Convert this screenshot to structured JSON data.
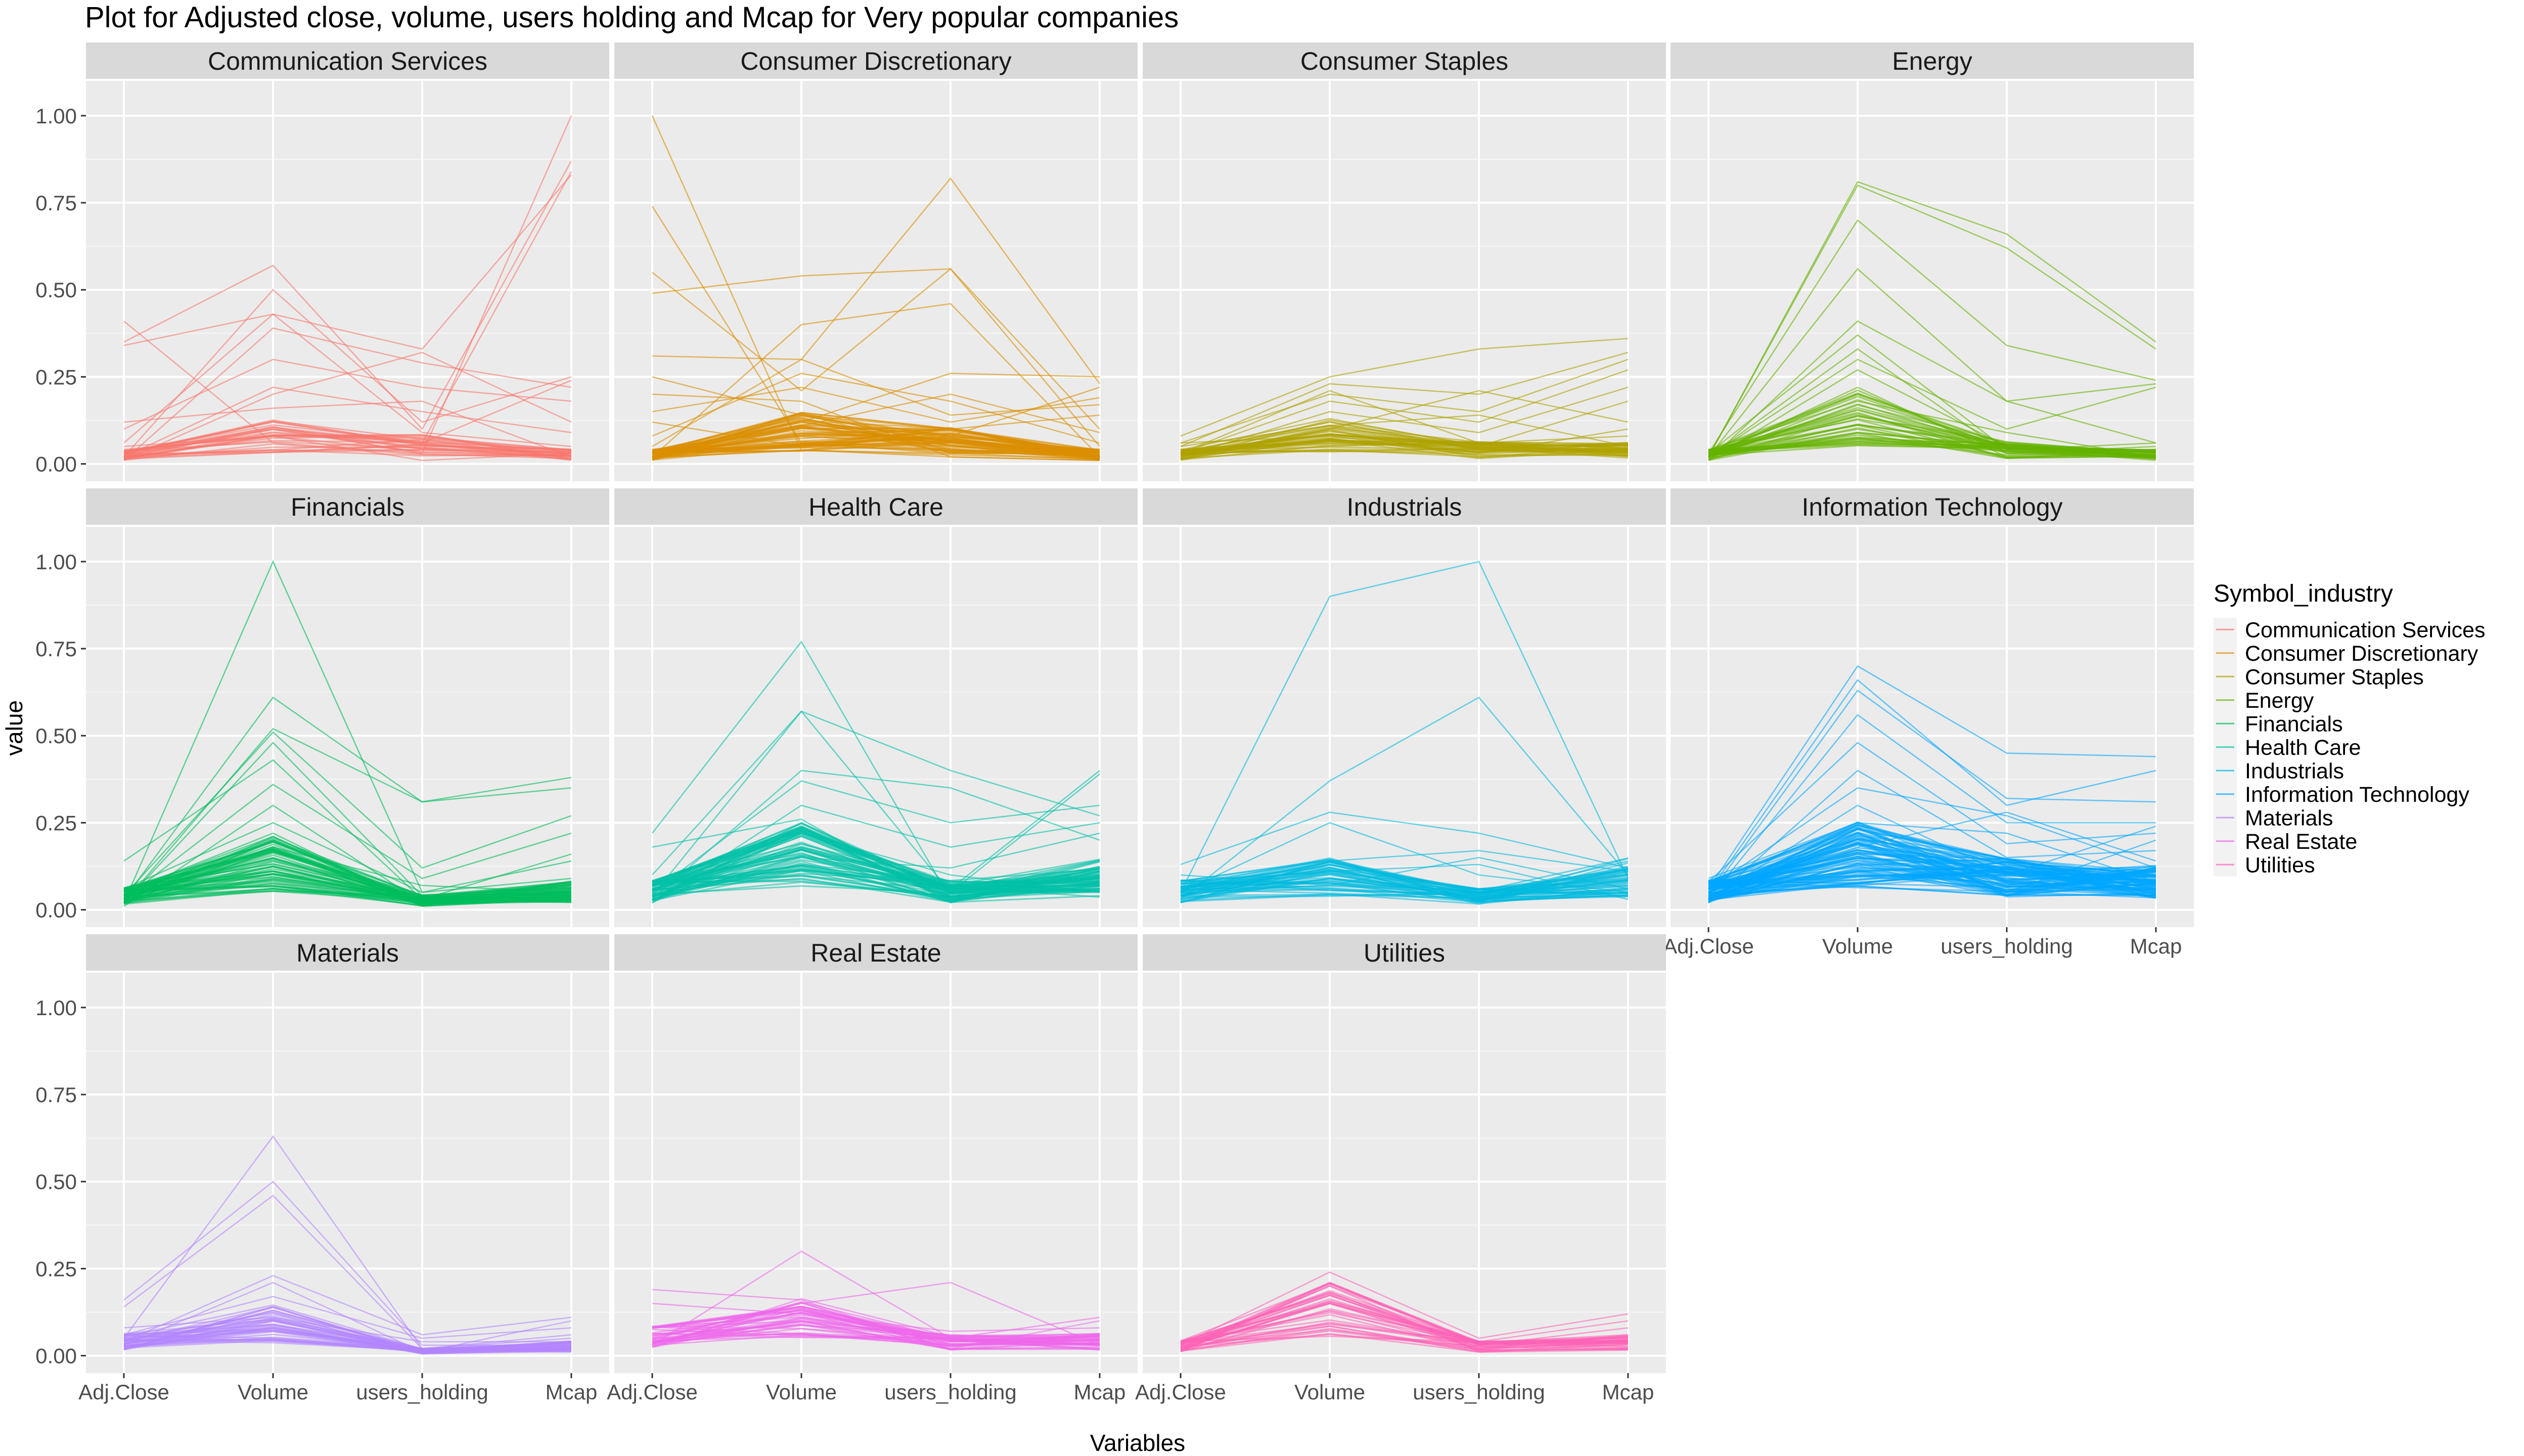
{
  "chart_data": {
    "type": "line",
    "subtype": "parallel-coordinates-faceted",
    "title": "Plot for Adjusted close, volume, users holding and Mcap for Very popular companies",
    "xlabel": "Variables",
    "ylabel": "value",
    "categories": [
      "Adj.Close",
      "Volume",
      "users_holding",
      "Mcap"
    ],
    "yticks": [
      "0.00",
      "0.25",
      "0.50",
      "0.75",
      "1.00"
    ],
    "ylim": [
      -0.05,
      1.1
    ],
    "grid": true,
    "legend": {
      "title": "Symbol_industry",
      "placement": "right",
      "entries": [
        {
          "name": "Communication Services",
          "color": "#F8766D"
        },
        {
          "name": "Consumer Discretionary",
          "color": "#DB8E00"
        },
        {
          "name": "Consumer Staples",
          "color": "#AEA200"
        },
        {
          "name": "Energy",
          "color": "#64B200"
        },
        {
          "name": "Financials",
          "color": "#00BD5C"
        },
        {
          "name": "Health Care",
          "color": "#00C1A7"
        },
        {
          "name": "Industrials",
          "color": "#00BADE"
        },
        {
          "name": "Information Technology",
          "color": "#00A6FF"
        },
        {
          "name": "Materials",
          "color": "#B385FF"
        },
        {
          "name": "Real Estate",
          "color": "#EF67EB"
        },
        {
          "name": "Utilities",
          "color": "#FF63B6"
        }
      ]
    },
    "facets": [
      {
        "name": "Communication Services",
        "color": "#F8766D",
        "dense": [
          0.02,
          0.06,
          0.04,
          0.02
        ],
        "dense_count": 28,
        "series": [
          [
            0.41,
            0.06,
            0.03,
            1.0
          ],
          [
            0.35,
            0.57,
            0.1,
            0.87
          ],
          [
            0.34,
            0.43,
            0.33,
            0.83
          ],
          [
            0.02,
            0.5,
            0.12,
            0.25
          ],
          [
            0.01,
            0.39,
            0.29,
            0.22
          ],
          [
            0.03,
            0.12,
            0.06,
            0.84
          ],
          [
            0.1,
            0.3,
            0.22,
            0.18
          ],
          [
            0.02,
            0.22,
            0.15,
            0.09
          ],
          [
            0.05,
            0.08,
            0.01,
            0.03
          ],
          [
            0.01,
            0.2,
            0.32,
            0.12
          ],
          [
            0.06,
            0.43,
            0.09,
            0.05
          ],
          [
            0.02,
            0.1,
            0.06,
            0.24
          ],
          [
            0.12,
            0.16,
            0.18,
            0.02
          ]
        ]
      },
      {
        "name": "Consumer Discretionary",
        "color": "#DB8E00",
        "dense": [
          0.02,
          0.07,
          0.05,
          0.02
        ],
        "dense_count": 60,
        "series": [
          [
            1.0,
            0.04,
            0.02,
            0.01
          ],
          [
            0.74,
            0.06,
            0.03,
            0.03
          ],
          [
            0.55,
            0.21,
            0.56,
            0.05
          ],
          [
            0.49,
            0.54,
            0.56,
            0.1
          ],
          [
            0.31,
            0.3,
            0.82,
            0.23
          ],
          [
            0.02,
            0.4,
            0.46,
            0.02
          ],
          [
            0.02,
            0.12,
            0.26,
            0.25
          ],
          [
            0.25,
            0.14,
            0.1,
            0.14
          ],
          [
            0.15,
            0.22,
            0.12,
            0.19
          ],
          [
            0.08,
            0.26,
            0.18,
            0.06
          ],
          [
            0.12,
            0.05,
            0.08,
            0.22
          ],
          [
            0.2,
            0.18,
            0.02,
            0.01
          ],
          [
            0.05,
            0.3,
            0.14,
            0.17
          ],
          [
            0.03,
            0.11,
            0.2,
            0.09
          ]
        ]
      },
      {
        "name": "Consumer Staples",
        "color": "#AEA200",
        "dense": [
          0.02,
          0.06,
          0.03,
          0.03
        ],
        "dense_count": 40,
        "series": [
          [
            0.08,
            0.25,
            0.33,
            0.36
          ],
          [
            0.05,
            0.23,
            0.2,
            0.32
          ],
          [
            0.06,
            0.2,
            0.15,
            0.3
          ],
          [
            0.03,
            0.18,
            0.12,
            0.27
          ],
          [
            0.02,
            0.15,
            0.09,
            0.22
          ],
          [
            0.04,
            0.13,
            0.05,
            0.18
          ],
          [
            0.02,
            0.1,
            0.21,
            0.12
          ],
          [
            0.06,
            0.08,
            0.03,
            0.1
          ],
          [
            0.03,
            0.21,
            0.06,
            0.08
          ],
          [
            0.05,
            0.11,
            0.14,
            0.05
          ]
        ]
      },
      {
        "name": "Energy",
        "color": "#64B200",
        "dense": [
          0.02,
          0.1,
          0.03,
          0.02
        ],
        "dense_count": 40,
        "series": [
          [
            0.02,
            0.81,
            0.66,
            0.35
          ],
          [
            0.02,
            0.8,
            0.62,
            0.33
          ],
          [
            0.03,
            0.7,
            0.34,
            0.24
          ],
          [
            0.02,
            0.56,
            0.18,
            0.23
          ],
          [
            0.01,
            0.41,
            0.18,
            0.06
          ],
          [
            0.03,
            0.37,
            0.04,
            0.06
          ],
          [
            0.02,
            0.3,
            0.1,
            0.22
          ],
          [
            0.01,
            0.27,
            0.05,
            0.04
          ],
          [
            0.02,
            0.22,
            0.02,
            0.03
          ],
          [
            0.04,
            0.18,
            0.09,
            0.02
          ],
          [
            0.02,
            0.33,
            0.03,
            0.05
          ]
        ]
      },
      {
        "name": "Financials",
        "color": "#00BD5C",
        "dense": [
          0.03,
          0.1,
          0.02,
          0.04
        ],
        "dense_count": 70,
        "series": [
          [
            0.02,
            1.0,
            0.05,
            0.09
          ],
          [
            0.03,
            0.61,
            0.31,
            0.38
          ],
          [
            0.02,
            0.52,
            0.31,
            0.35
          ],
          [
            0.04,
            0.51,
            0.12,
            0.27
          ],
          [
            0.14,
            0.43,
            0.03,
            0.16
          ],
          [
            0.03,
            0.36,
            0.09,
            0.22
          ],
          [
            0.01,
            0.3,
            0.02,
            0.05
          ],
          [
            0.06,
            0.25,
            0.05,
            0.14
          ],
          [
            0.02,
            0.48,
            0.04,
            0.08
          ],
          [
            0.05,
            0.22,
            0.01,
            0.03
          ],
          [
            0.02,
            0.18,
            0.07,
            0.05
          ]
        ]
      },
      {
        "name": "Health Care",
        "color": "#00C1A7",
        "dense": [
          0.04,
          0.12,
          0.04,
          0.07
        ],
        "dense_count": 70,
        "series": [
          [
            0.22,
            0.77,
            0.03,
            0.08
          ],
          [
            0.04,
            0.57,
            0.4,
            0.27
          ],
          [
            0.1,
            0.57,
            0.05,
            0.39
          ],
          [
            0.03,
            0.4,
            0.35,
            0.2
          ],
          [
            0.05,
            0.37,
            0.25,
            0.3
          ],
          [
            0.02,
            0.3,
            0.18,
            0.25
          ],
          [
            0.18,
            0.26,
            0.02,
            0.12
          ],
          [
            0.02,
            0.22,
            0.1,
            0.05
          ],
          [
            0.08,
            0.19,
            0.06,
            0.4
          ],
          [
            0.03,
            0.15,
            0.12,
            0.22
          ]
        ]
      },
      {
        "name": "Industrials",
        "color": "#00BADE",
        "dense": [
          0.04,
          0.07,
          0.03,
          0.07
        ],
        "dense_count": 50,
        "series": [
          [
            0.05,
            0.9,
            1.0,
            0.09
          ],
          [
            0.03,
            0.37,
            0.61,
            0.1
          ],
          [
            0.13,
            0.28,
            0.22,
            0.12
          ],
          [
            0.05,
            0.25,
            0.1,
            0.05
          ],
          [
            0.02,
            0.14,
            0.17,
            0.11
          ],
          [
            0.08,
            0.11,
            0.13,
            0.03
          ],
          [
            0.03,
            0.09,
            0.05,
            0.12
          ],
          [
            0.1,
            0.07,
            0.15,
            0.06
          ]
        ]
      },
      {
        "name": "Information Technology",
        "color": "#00A6FF",
        "dense": [
          0.04,
          0.12,
          0.07,
          0.06
        ],
        "dense_count": 90,
        "series": [
          [
            0.06,
            0.7,
            0.45,
            0.44
          ],
          [
            0.05,
            0.66,
            0.3,
            0.4
          ],
          [
            0.04,
            0.63,
            0.32,
            0.31
          ],
          [
            0.03,
            0.56,
            0.25,
            0.25
          ],
          [
            0.08,
            0.48,
            0.19,
            0.22
          ],
          [
            0.02,
            0.4,
            0.15,
            0.17
          ],
          [
            0.06,
            0.35,
            0.27,
            0.12
          ],
          [
            0.03,
            0.3,
            0.1,
            0.24
          ],
          [
            0.09,
            0.25,
            0.22,
            0.08
          ],
          [
            0.02,
            0.22,
            0.05,
            0.2
          ],
          [
            0.05,
            0.18,
            0.28,
            0.14
          ],
          [
            0.04,
            0.15,
            0.12,
            0.06
          ]
        ]
      },
      {
        "name": "Materials",
        "color": "#B385FF",
        "dense": [
          0.03,
          0.07,
          0.01,
          0.02
        ],
        "dense_count": 40,
        "series": [
          [
            0.05,
            0.63,
            0.02,
            0.05
          ],
          [
            0.16,
            0.5,
            0.03,
            0.03
          ],
          [
            0.14,
            0.46,
            0.02,
            0.02
          ],
          [
            0.04,
            0.23,
            0.06,
            0.11
          ],
          [
            0.03,
            0.21,
            0.01,
            0.1
          ],
          [
            0.06,
            0.17,
            0.05,
            0.08
          ],
          [
            0.02,
            0.13,
            0.02,
            0.06
          ],
          [
            0.08,
            0.11,
            0.04,
            0.04
          ]
        ]
      },
      {
        "name": "Real Estate",
        "color": "#EF67EB",
        "dense": [
          0.04,
          0.08,
          0.03,
          0.03
        ],
        "dense_count": 40,
        "series": [
          [
            0.03,
            0.3,
            0.05,
            0.03
          ],
          [
            0.19,
            0.16,
            0.02,
            0.1
          ],
          [
            0.05,
            0.15,
            0.21,
            0.03
          ],
          [
            0.15,
            0.12,
            0.07,
            0.08
          ],
          [
            0.08,
            0.1,
            0.05,
            0.11
          ],
          [
            0.03,
            0.06,
            0.04,
            0.06
          ]
        ]
      },
      {
        "name": "Utilities",
        "color": "#FF63B6",
        "dense": [
          0.02,
          0.1,
          0.02,
          0.03
        ],
        "dense_count": 35,
        "series": [
          [
            0.03,
            0.24,
            0.05,
            0.12
          ],
          [
            0.02,
            0.2,
            0.04,
            0.1
          ],
          [
            0.04,
            0.18,
            0.03,
            0.08
          ],
          [
            0.02,
            0.15,
            0.02,
            0.06
          ],
          [
            0.03,
            0.13,
            0.04,
            0.05
          ]
        ]
      }
    ]
  }
}
